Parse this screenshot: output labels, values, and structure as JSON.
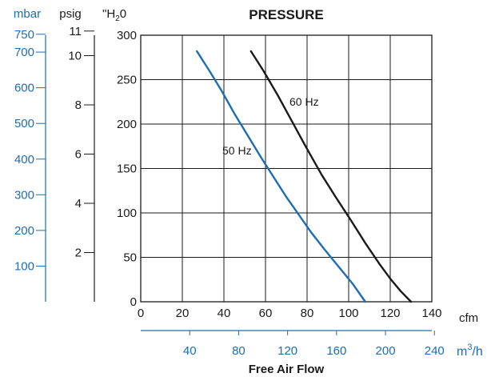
{
  "chart_data": {
    "type": "line",
    "title": "PRESSURE",
    "xlabel": "Free Air Flow",
    "x_primary": {
      "unit": "cfm",
      "min": 0,
      "max": 140,
      "ticks": [
        0,
        20,
        40,
        60,
        80,
        100,
        120,
        140
      ],
      "grid": true
    },
    "x_secondary": {
      "unit_base": "m",
      "unit_sup": "3",
      "unit_tail": "/h",
      "ticks": [
        40,
        80,
        120,
        160,
        200,
        240
      ],
      "per_cfm": 1.699,
      "color": "#1c6db3"
    },
    "y_primary": {
      "unit_base": "\"H",
      "unit_sub": "2",
      "unit_tail": "0",
      "min": 0,
      "max": 300,
      "ticks": [
        0,
        50,
        100,
        150,
        200,
        250,
        300
      ],
      "grid": true
    },
    "y_psig": {
      "unit": "psig",
      "ticks": [
        2,
        4,
        6,
        8,
        10,
        11
      ],
      "per_inh2o": 0.0361
    },
    "y_mbar": {
      "unit": "mbar",
      "ticks": [
        100,
        200,
        300,
        400,
        500,
        600,
        700,
        750
      ],
      "per_inh2o": 2.491,
      "color": "#1c6db3"
    },
    "series": [
      {
        "name": "50 Hz",
        "color": "#1c6db3",
        "x": [
          27,
          33,
          39,
          45,
          52,
          58,
          64,
          70,
          76,
          82,
          88,
          95,
          102,
          108
        ],
        "y": [
          282,
          260,
          237,
          212,
          185,
          162,
          140,
          118,
          98,
          78,
          60,
          40,
          20,
          0
        ]
      },
      {
        "name": "60 Hz",
        "color": "#1a1a1a",
        "x": [
          53,
          59,
          66,
          73,
          80,
          87,
          94,
          101,
          108,
          115,
          120,
          125,
          130
        ],
        "y": [
          282,
          260,
          232,
          202,
          172,
          143,
          117,
          92,
          66,
          42,
          26,
          12,
          0
        ]
      }
    ]
  }
}
